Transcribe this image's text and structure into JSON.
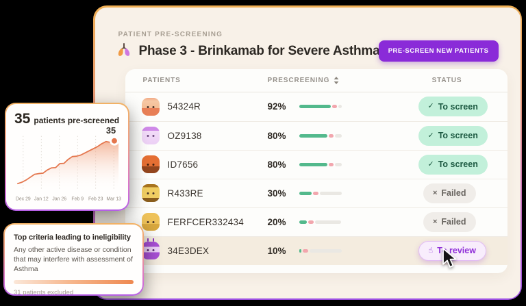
{
  "page": {
    "background": "#000000"
  },
  "main": {
    "eyebrow": "PATIENT PRE-SCREENING",
    "title": "Phase 3 - Brinkamab for Severe Asthma",
    "title_icon": "lungs-icon",
    "cta": {
      "label": "PRE-SCREEN NEW PATIENTS",
      "color": "#8a2bd8"
    }
  },
  "table": {
    "columns": [
      {
        "label": "PATIENTS"
      },
      {
        "label": "PRESCREENING",
        "sortable": true
      },
      {
        "label": "STATUS"
      }
    ],
    "rows": [
      {
        "id": "54324R",
        "avatar": "peach",
        "percent": "92%",
        "bar": {
          "green": 80,
          "pink": 13,
          "rest": 7
        },
        "status": {
          "label": "To screen",
          "type": "screen",
          "icon": "check"
        },
        "highlighted": false
      },
      {
        "id": "OZ9138",
        "avatar": "lilac",
        "percent": "80%",
        "bar": {
          "green": 72,
          "pink": 12,
          "rest": 16
        },
        "status": {
          "label": "To screen",
          "type": "screen",
          "icon": "check"
        },
        "highlighted": false
      },
      {
        "id": "ID7656",
        "avatar": "rust",
        "percent": "80%",
        "bar": {
          "green": 72,
          "pink": 12,
          "rest": 16
        },
        "status": {
          "label": "To screen",
          "type": "screen",
          "icon": "check"
        },
        "highlighted": false
      },
      {
        "id": "R433RE",
        "avatar": "hay",
        "percent": "30%",
        "bar": {
          "green": 32,
          "pink": 13,
          "rest": 55
        },
        "status": {
          "label": "Failed",
          "type": "failed",
          "icon": "cross"
        },
        "highlighted": false
      },
      {
        "id": "FERFCER332434",
        "avatar": "gold",
        "percent": "20%",
        "bar": {
          "green": 20,
          "pink": 14,
          "rest": 66
        },
        "status": {
          "label": "Failed",
          "type": "failed",
          "icon": "cross"
        },
        "highlighted": false
      },
      {
        "id": "34E3DEX",
        "avatar": "grape",
        "percent": "10%",
        "bar": {
          "green": 6,
          "pink": 14,
          "rest": 80
        },
        "status": {
          "label": "To review",
          "type": "review",
          "icon": "tap"
        },
        "highlighted": true
      }
    ]
  },
  "chart_card": {
    "headline_value": "35",
    "headline_label": "patients pre-screened"
  },
  "chart_data": {
    "type": "area",
    "title": "35 patients pre-screened",
    "x_ticks": [
      "Dec 29",
      "Jan 12",
      "Jan 26",
      "Feb 9",
      "Feb 23",
      "Mar 13"
    ],
    "values": [
      5,
      6,
      7.5,
      9.5,
      11.5,
      12,
      12.3,
      14.5,
      16,
      16.2,
      19,
      19.2,
      22,
      24,
      24.2,
      25,
      26.5,
      28,
      29.5,
      31,
      33,
      34.5,
      34,
      35,
      35.2
    ],
    "ylim": [
      0,
      40
    ],
    "grid": "vertical-dotted",
    "line_color": "#e4764d",
    "fill_color": "#f09a6e",
    "annotation": {
      "label": "35",
      "index": 23
    }
  },
  "criteria_card": {
    "title": "Top criteria leading to ineligibility",
    "body": "Any other active disease or condition that may interfere with assessment of Asthma",
    "footnote": "31 patients excluded"
  },
  "colors": {
    "status_screen_bg": "#c2f0da",
    "status_screen_text": "#1d5a42",
    "status_failed_bg": "#f0ede9",
    "status_failed_text": "#68645f",
    "status_review_bg": "#f8edfc",
    "status_review_text": "#9030d8",
    "bar_green": "#53b98c",
    "bar_pink": "#f2a6ad",
    "accent_purple": "#8a2bd8",
    "line_orange": "#e4764d"
  }
}
